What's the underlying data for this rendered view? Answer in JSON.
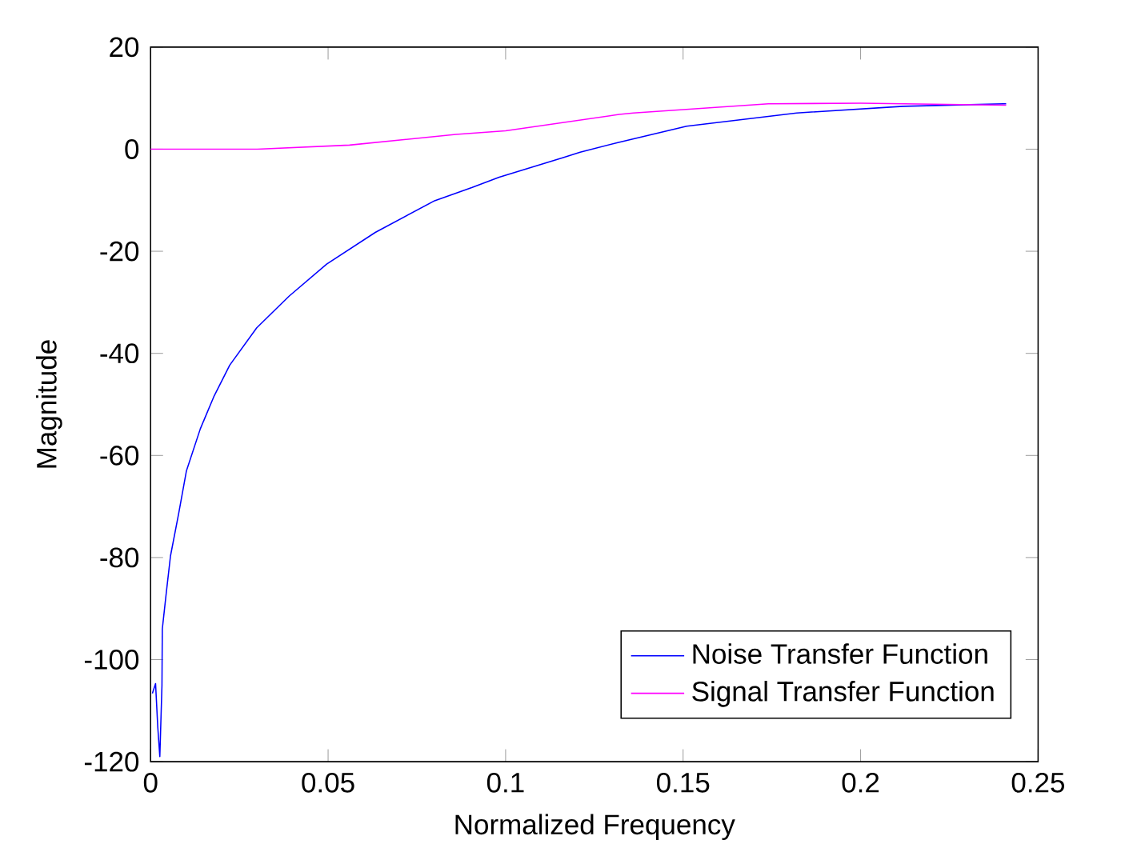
{
  "chart_data": {
    "type": "line",
    "xlabel": "Normalized Frequency",
    "ylabel": "Magnitude",
    "xlim": [
      0,
      0.25
    ],
    "ylim": [
      -120,
      20
    ],
    "xticks": [
      0,
      0.05,
      0.1,
      0.15,
      0.2,
      0.25
    ],
    "yticks": [
      -120,
      -100,
      -80,
      -60,
      -40,
      -20,
      0,
      20
    ],
    "grid": false,
    "legend": "bottom right",
    "line_style": "solid",
    "marker": "none",
    "series": [
      {
        "name": "Noise Transfer Function",
        "color": "#0000ff",
        "x": [
          0.0005,
          0.0014,
          0.002,
          0.0026,
          0.0032,
          0.0033,
          0.0044,
          0.0056,
          0.0079,
          0.0101,
          0.014,
          0.0178,
          0.0223,
          0.0299,
          0.039,
          0.0496,
          0.0633,
          0.08,
          0.0906,
          0.0982,
          0.1164,
          0.121,
          0.1316,
          0.151,
          0.182,
          0.212,
          0.241
        ],
        "values": [
          -106.6,
          -104.7,
          -113,
          -119,
          -105,
          -94,
          -87,
          -79.7,
          -71.4,
          -63,
          -54.8,
          -48.5,
          -42.3,
          -35,
          -28.8,
          -22.5,
          -16.3,
          -10.1,
          -7.5,
          -5.5,
          -1.6,
          -0.6,
          1.3,
          4.5,
          7.1,
          8.4,
          8.9
        ]
      },
      {
        "name": "Signal Transfer Function",
        "color": "#ff00ff",
        "x": [
          0,
          0.03,
          0.056,
          0.086,
          0.1,
          0.132,
          0.136,
          0.174,
          0.2,
          0.241
        ],
        "values": [
          0,
          0,
          0.8,
          2.9,
          3.6,
          6.8,
          7.1,
          8.9,
          9,
          8.6
        ]
      }
    ]
  }
}
